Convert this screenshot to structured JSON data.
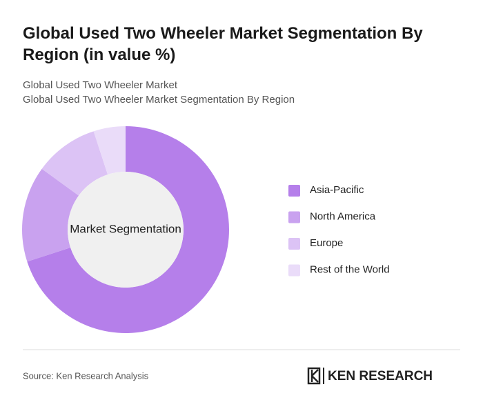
{
  "chart_data": {
    "type": "donut",
    "title": "Global Used Two Wheeler Market Segmentation By Region (in value %)",
    "subtitle": [
      "Global Used Two Wheeler Market",
      "Global Used Two Wheeler Market Segmentation By Region"
    ],
    "center_label": "Market Segmentation",
    "categories": [
      "Asia-Pacific",
      "North America",
      "Europe",
      "Rest of the World"
    ],
    "values": [
      70,
      15,
      10,
      5
    ],
    "colors": [
      "#b57fea",
      "#c9a2ef",
      "#dcc3f5",
      "#eadcf9"
    ],
    "legend": "right"
  },
  "footer": {
    "source": "Source: Ken Research Analysis",
    "logo": "KEN RESEARCH"
  }
}
